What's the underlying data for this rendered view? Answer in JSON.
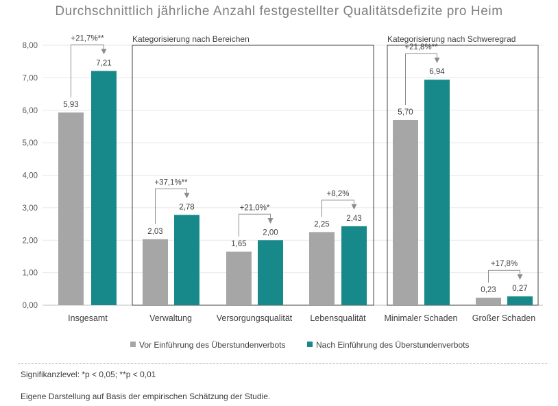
{
  "chart_data": {
    "type": "bar",
    "title": "Durchschnittlich jährliche Anzahl festgestellter Qualitätsdefizite pro Heim",
    "categories": [
      "Insgesamt",
      "Verwaltung",
      "Versorgungsqualität",
      "Lebensqualität",
      "Minimaler Schaden",
      "Großer Schaden"
    ],
    "series": [
      {
        "name": "Vor Einführung des Überstundenverbots",
        "values": [
          5.93,
          2.03,
          1.65,
          2.25,
          5.7,
          0.23
        ],
        "color": "#a6a6a6"
      },
      {
        "name": "Nach Einführung des Überstundenverbots",
        "values": [
          7.21,
          2.78,
          2.0,
          2.43,
          6.94,
          0.27
        ],
        "color": "#17898a"
      }
    ],
    "value_labels": {
      "before": [
        "5,93",
        "2,03",
        "1,65",
        "2,25",
        "5,70",
        "0,23"
      ],
      "after": [
        "7,21",
        "2,78",
        "2,00",
        "2,43",
        "6,94",
        "0,27"
      ]
    },
    "change_labels": [
      "+21,7%**",
      "+37,1%**",
      "+21,0%*",
      "+8,2%",
      "+21,8%**",
      "+17,8%"
    ],
    "ylim": [
      0,
      8
    ],
    "yticks": [
      0,
      1,
      2,
      3,
      4,
      5,
      6,
      7,
      8
    ],
    "ytick_labels": [
      "0,00",
      "1,00",
      "2,00",
      "3,00",
      "4,00",
      "5,00",
      "6,00",
      "7,00",
      "8,00"
    ],
    "groups": [
      {
        "label": "Kategorisierung nach Bereichen",
        "categories": [
          1,
          2,
          3
        ]
      },
      {
        "label": "Kategorisierung nach Schweregrad",
        "categories": [
          4,
          5
        ]
      }
    ],
    "grid": true,
    "legend_position": "bottom"
  },
  "footnotes": {
    "significance": "Signifikanzlevel: *p < 0,05; **p < 0,01",
    "source": "Eigene Darstellung auf Basis der empirischen Schätzung der Studie."
  }
}
